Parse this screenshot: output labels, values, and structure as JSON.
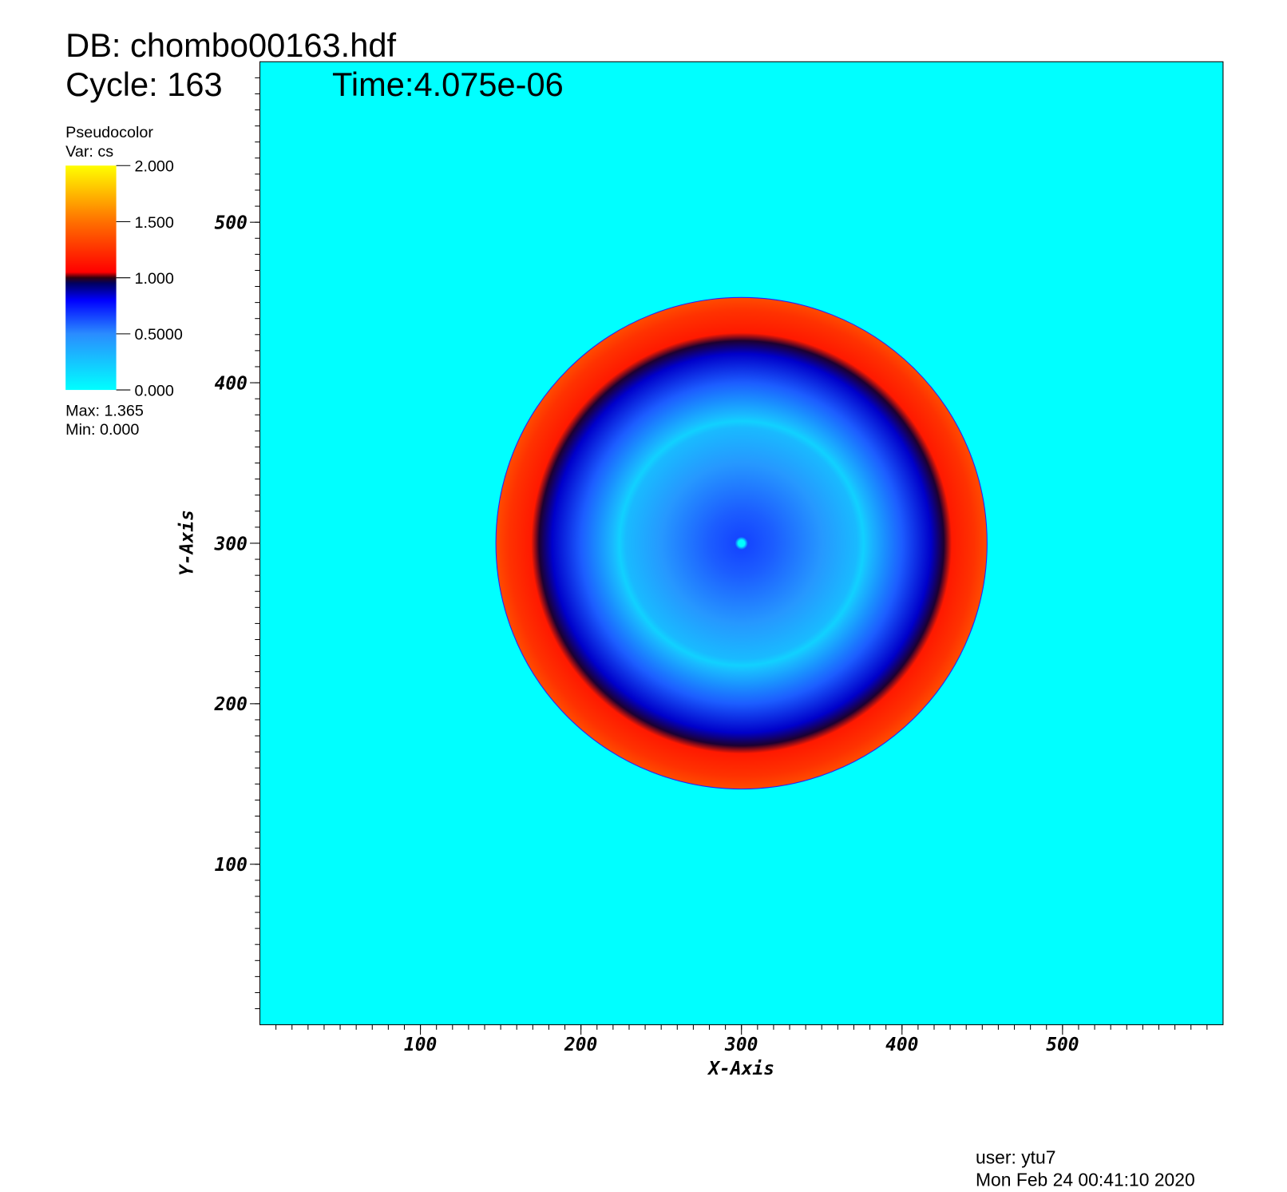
{
  "chart_data": {
    "type": "pseudocolor",
    "title": "DB: chombo00163.hdf",
    "cycle": "Cycle: 163",
    "time": "Time:4.075e-06",
    "legend": {
      "title": "Pseudocolor",
      "variable": "Var: cs",
      "ticks": [
        {
          "value": 2,
          "label": "2.000"
        },
        {
          "value": 1.5,
          "label": "1.500"
        },
        {
          "value": 1,
          "label": "1.000"
        },
        {
          "value": 0.5,
          "label": "0.5000"
        },
        {
          "value": 0,
          "label": "0.000"
        }
      ],
      "range": [
        0,
        2
      ],
      "max": "Max:  1.365",
      "min": "Min:  0.000"
    },
    "colormap": [
      [
        0,
        "#00ffff"
      ],
      [
        0.5,
        "#2a8cff"
      ],
      [
        0.8,
        "#0000ff"
      ],
      [
        0.95,
        "#000060"
      ],
      [
        1.0,
        "#300010"
      ],
      [
        1.05,
        "#ff0000"
      ],
      [
        1.5,
        "#ff7000"
      ],
      [
        2.0,
        "#ffff00"
      ]
    ],
    "background_value": 0,
    "center": [
      300,
      300
    ],
    "radial_profile": {
      "r": [
        0,
        2,
        4,
        20,
        50,
        72,
        76,
        80,
        100,
        118,
        126,
        131,
        145,
        153
      ],
      "values": [
        0,
        0,
        0.65,
        0.6,
        0.45,
        0.3,
        0.2,
        0.3,
        0.6,
        0.85,
        0.98,
        1.15,
        1.25,
        1.35
      ]
    },
    "x_label": "X-Axis",
    "y_label": "Y-Axis",
    "xlim": [
      0,
      600
    ],
    "ylim": [
      0,
      600
    ],
    "xticks": [
      100,
      200,
      300,
      400,
      500
    ],
    "yticks": [
      100,
      200,
      300,
      400,
      500
    ],
    "minor_step": 10,
    "user": "user: ytu7",
    "date": "Mon Feb 24 00:41:10 2020"
  }
}
